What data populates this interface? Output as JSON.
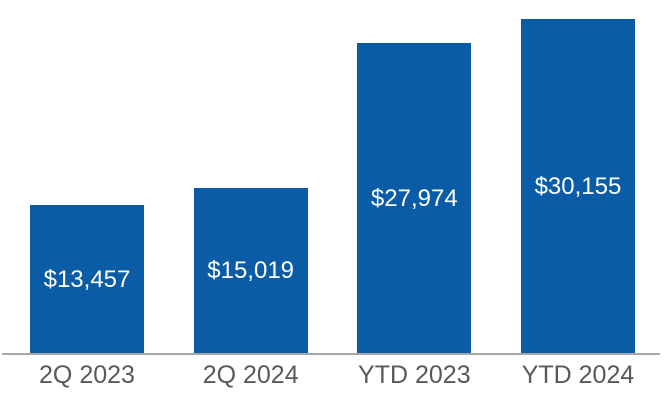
{
  "chart_data": {
    "type": "bar",
    "categories": [
      "2Q 2023",
      "2Q 2024",
      "YTD 2023",
      "YTD 2024"
    ],
    "values": [
      13457,
      15019,
      27974,
      30155
    ],
    "data_labels": [
      "$13,457",
      "$15,019",
      "$27,974",
      "$30,155"
    ],
    "title": "",
    "xlabel": "",
    "ylabel": "",
    "ylim": [
      0,
      31800
    ],
    "grid": false,
    "legend": false,
    "data_label_position": "center-of-bar",
    "colors": {
      "bar": "#0A5CA6",
      "data_label": "#FFFFFF",
      "category_label": "#595959",
      "axis_line": "#A6A6A6",
      "background": "#FFFFFF"
    }
  }
}
